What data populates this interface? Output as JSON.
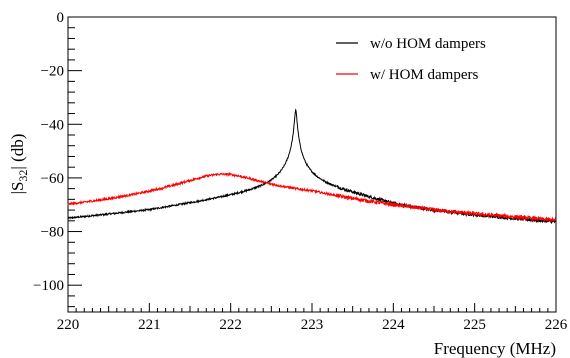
{
  "chart_data": {
    "type": "line",
    "xlabel": "Frequency (MHz)",
    "ylabel": {
      "prefix": "|S",
      "sub": "32",
      "suffix": "| (db)"
    },
    "xlim": [
      220,
      226
    ],
    "ylim": [
      -110,
      0
    ],
    "x_ticks": [
      220,
      221,
      222,
      223,
      224,
      225,
      226
    ],
    "y_ticks": [
      0,
      -20,
      -40,
      -60,
      -80,
      -100
    ],
    "x_tick_labels": [
      "220",
      "221",
      "222",
      "223",
      "224",
      "225",
      "226"
    ],
    "y_tick_labels": [
      "0",
      "−20",
      "−40",
      "−60",
      "−80",
      "−100"
    ],
    "legend_position": "top-right",
    "series": [
      {
        "name": "w/o HOM dampers",
        "color": "#000000",
        "resonance": {
          "center_mhz": 222.8,
          "peak_db": -34.5,
          "half_width_mhz": 0.012
        },
        "background": {
          "x": [
            220,
            220.5,
            221,
            221.5,
            222,
            222.5,
            223,
            223.5,
            224,
            224.5,
            225,
            225.5,
            226
          ],
          "y": [
            -76,
            -74.5,
            -73,
            -70.5,
            -68,
            -65.5,
            -63.5,
            -67,
            -71,
            -73.5,
            -75,
            -76.3,
            -77.5
          ]
        }
      },
      {
        "name": "w/ HOM dampers",
        "color": "#ff0000",
        "resonance": {
          "center_mhz": 221.9,
          "peak_db": -59,
          "half_width_mhz": 0.45
        },
        "background": {
          "x": [
            220,
            220.5,
            221,
            221.5,
            222,
            222.5,
            223,
            223.5,
            224,
            224.5,
            225,
            225.5,
            226
          ],
          "y": [
            -74.2,
            -73,
            -71.5,
            -70,
            -69,
            -68.5,
            -68.2,
            -71,
            -73.5,
            -75.5,
            -77,
            -78,
            -79.5
          ]
        }
      }
    ]
  }
}
